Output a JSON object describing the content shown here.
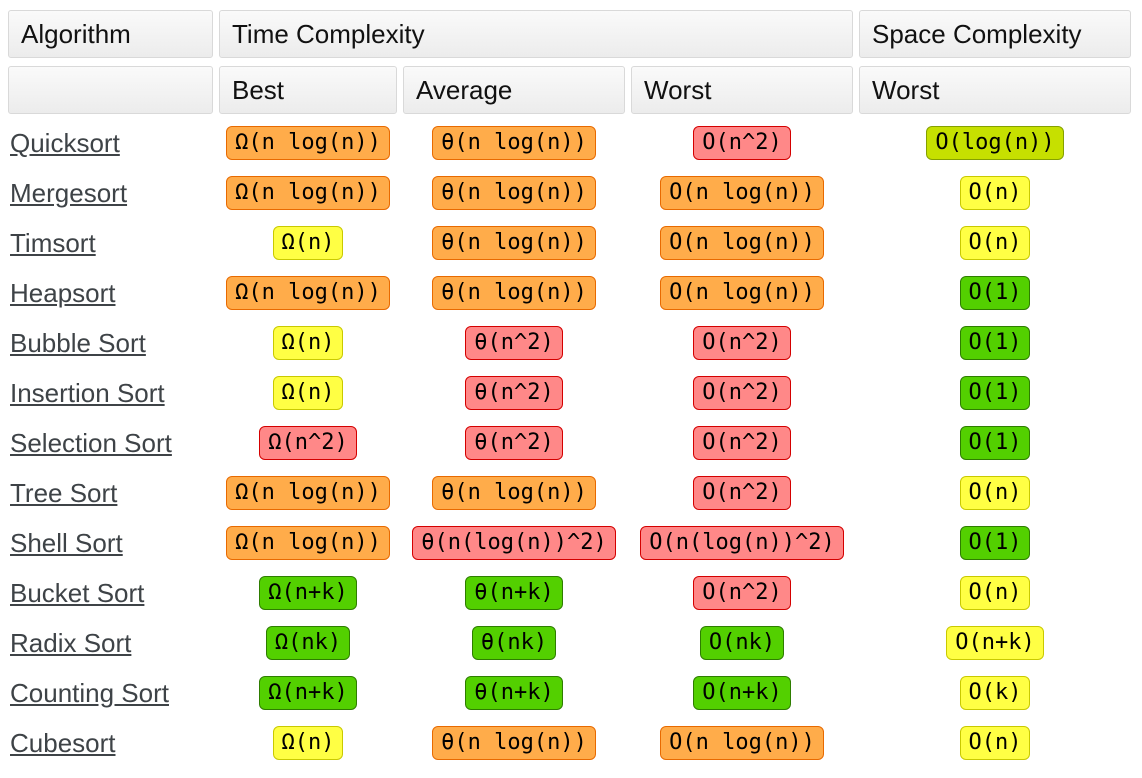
{
  "header": {
    "algorithm": "Algorithm",
    "time_complexity": "Time Complexity",
    "space_complexity": "Space Complexity",
    "best": "Best",
    "average": "Average",
    "worst": "Worst",
    "space_worst": "Worst"
  },
  "colors": {
    "red": {
      "bg": "#FF8888",
      "border": "#D40000"
    },
    "orange": {
      "bg": "#FFAC4A",
      "border": "#E86A00"
    },
    "yellow": {
      "bg": "#FFFF44",
      "border": "#C9C900"
    },
    "yellowgreen": {
      "bg": "#C6E000",
      "border": "#85A000"
    },
    "green": {
      "bg": "#53D000",
      "border": "#2E7D00"
    }
  },
  "rows": [
    {
      "name": "Quicksort",
      "cells": [
        {
          "text": "Ω(n log(n))",
          "level": "orange"
        },
        {
          "text": "θ(n log(n))",
          "level": "orange"
        },
        {
          "text": "O(n^2)",
          "level": "red"
        },
        {
          "text": "O(log(n))",
          "level": "yellowgreen"
        }
      ]
    },
    {
      "name": "Mergesort",
      "cells": [
        {
          "text": "Ω(n log(n))",
          "level": "orange"
        },
        {
          "text": "θ(n log(n))",
          "level": "orange"
        },
        {
          "text": "O(n log(n))",
          "level": "orange"
        },
        {
          "text": "O(n)",
          "level": "yellow"
        }
      ]
    },
    {
      "name": "Timsort",
      "cells": [
        {
          "text": "Ω(n)",
          "level": "yellow"
        },
        {
          "text": "θ(n log(n))",
          "level": "orange"
        },
        {
          "text": "O(n log(n))",
          "level": "orange"
        },
        {
          "text": "O(n)",
          "level": "yellow"
        }
      ]
    },
    {
      "name": "Heapsort",
      "cells": [
        {
          "text": "Ω(n log(n))",
          "level": "orange"
        },
        {
          "text": "θ(n log(n))",
          "level": "orange"
        },
        {
          "text": "O(n log(n))",
          "level": "orange"
        },
        {
          "text": "O(1)",
          "level": "green"
        }
      ]
    },
    {
      "name": "Bubble Sort",
      "cells": [
        {
          "text": "Ω(n)",
          "level": "yellow"
        },
        {
          "text": "θ(n^2)",
          "level": "red"
        },
        {
          "text": "O(n^2)",
          "level": "red"
        },
        {
          "text": "O(1)",
          "level": "green"
        }
      ]
    },
    {
      "name": "Insertion Sort",
      "cells": [
        {
          "text": "Ω(n)",
          "level": "yellow"
        },
        {
          "text": "θ(n^2)",
          "level": "red"
        },
        {
          "text": "O(n^2)",
          "level": "red"
        },
        {
          "text": "O(1)",
          "level": "green"
        }
      ]
    },
    {
      "name": "Selection Sort",
      "cells": [
        {
          "text": "Ω(n^2)",
          "level": "red"
        },
        {
          "text": "θ(n^2)",
          "level": "red"
        },
        {
          "text": "O(n^2)",
          "level": "red"
        },
        {
          "text": "O(1)",
          "level": "green"
        }
      ]
    },
    {
      "name": "Tree Sort",
      "cells": [
        {
          "text": "Ω(n log(n))",
          "level": "orange"
        },
        {
          "text": "θ(n log(n))",
          "level": "orange"
        },
        {
          "text": "O(n^2)",
          "level": "red"
        },
        {
          "text": "O(n)",
          "level": "yellow"
        }
      ]
    },
    {
      "name": "Shell Sort",
      "cells": [
        {
          "text": "Ω(n log(n))",
          "level": "orange"
        },
        {
          "text": "θ(n(log(n))^2)",
          "level": "red"
        },
        {
          "text": "O(n(log(n))^2)",
          "level": "red"
        },
        {
          "text": "O(1)",
          "level": "green"
        }
      ]
    },
    {
      "name": "Bucket Sort",
      "cells": [
        {
          "text": "Ω(n+k)",
          "level": "green"
        },
        {
          "text": "θ(n+k)",
          "level": "green"
        },
        {
          "text": "O(n^2)",
          "level": "red"
        },
        {
          "text": "O(n)",
          "level": "yellow"
        }
      ]
    },
    {
      "name": "Radix Sort",
      "cells": [
        {
          "text": "Ω(nk)",
          "level": "green"
        },
        {
          "text": "θ(nk)",
          "level": "green"
        },
        {
          "text": "O(nk)",
          "level": "green"
        },
        {
          "text": "O(n+k)",
          "level": "yellow"
        }
      ]
    },
    {
      "name": "Counting Sort",
      "cells": [
        {
          "text": "Ω(n+k)",
          "level": "green"
        },
        {
          "text": "θ(n+k)",
          "level": "green"
        },
        {
          "text": "O(n+k)",
          "level": "green"
        },
        {
          "text": "O(k)",
          "level": "yellow"
        }
      ]
    },
    {
      "name": "Cubesort",
      "cells": [
        {
          "text": "Ω(n)",
          "level": "yellow"
        },
        {
          "text": "θ(n log(n))",
          "level": "orange"
        },
        {
          "text": "O(n log(n))",
          "level": "orange"
        },
        {
          "text": "O(n)",
          "level": "yellow"
        }
      ]
    }
  ]
}
